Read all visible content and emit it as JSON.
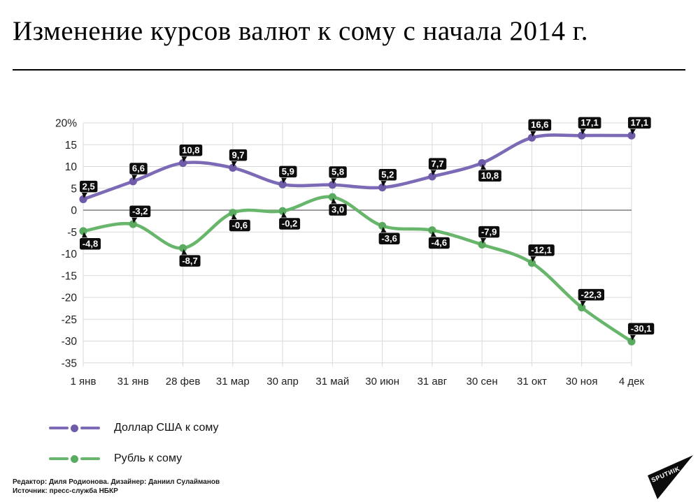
{
  "header": {
    "title": "Изменение курсов валют к сому с начала 2014 г."
  },
  "chart_data": {
    "type": "line",
    "title": "Изменение курсов валют к сому с начала 2014 г.",
    "categories": [
      "1 янв",
      "31 янв",
      "28 фев",
      "31 мар",
      "30 апр",
      "31 май",
      "30 июн",
      "31 авг",
      "30 сен",
      "31 окт",
      "30 ноя",
      "4 дек"
    ],
    "series": [
      {
        "name": "Доллар США к сому",
        "color": "#7d6ab6",
        "dot_color": "#6f5ca8",
        "values": [
          2.5,
          6.6,
          10.8,
          9.7,
          5.9,
          5.8,
          5.2,
          7.7,
          10.8,
          16.6,
          17.1,
          17.1
        ],
        "labels": [
          "2,5",
          "6,6",
          "10,8",
          "9,7",
          "5,9",
          "5,8",
          "5,2",
          "7,7",
          "10,8",
          "16,6",
          "17,1",
          "17,1"
        ],
        "label_placement": [
          "above",
          "above",
          "above",
          "above",
          "above",
          "above",
          "above",
          "above",
          "below",
          "above",
          "above",
          "above"
        ]
      },
      {
        "name": "Рубль к сому",
        "color": "#68b56c",
        "dot_color": "#5aab60",
        "values": [
          -4.8,
          -3.2,
          -8.7,
          -0.6,
          -0.2,
          3.0,
          -3.6,
          -4.6,
          -7.9,
          -12.1,
          -22.3,
          -30.1
        ],
        "labels": [
          "-4,8",
          "-3,2",
          "-8,7",
          "-0,6",
          "-0,2",
          "3,0",
          "-3,6",
          "-4,6",
          "-7,9",
          "-12,1",
          "-22,3",
          "-30,1"
        ],
        "label_placement": [
          "below",
          "above",
          "below",
          "below",
          "below",
          "below",
          "below",
          "below",
          "above",
          "above",
          "above",
          "above"
        ]
      }
    ],
    "ytick_values": [
      20,
      15,
      10,
      5,
      0,
      -5,
      -10,
      -15,
      -20,
      -25,
      -30,
      -35
    ],
    "ytick_labels": [
      "20%",
      "15",
      "10",
      "5",
      "0",
      "-5",
      "-10",
      "-15",
      "-20",
      "-25",
      "-30",
      "-35"
    ],
    "ylim": [
      -35,
      20
    ],
    "grid": true,
    "legend_position": "bottom-left",
    "colors": {
      "grid": "#d9d9d9",
      "zero_line": "#7f7f7f",
      "axis_text": "#1f1f1f",
      "data_label_bg": "#0d0d0d",
      "data_label_text": "#ffffff"
    }
  },
  "footer": {
    "credits": "Редактор: Диля Родионова. Дизайнер: Даниил Сулайманов",
    "source": "Источник: пресс-служба НБКР"
  },
  "logo": {
    "text": "SPUTИIK"
  }
}
